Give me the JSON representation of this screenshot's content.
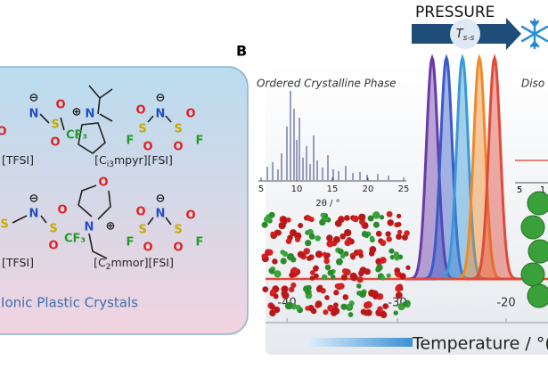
{
  "panel_a": {
    "title": "c Ionic Plastic Crystals",
    "compounds": [
      {
        "label": [
          "[TFSI]"
        ],
        "atoms": [
          "⊖",
          "N",
          "S",
          "O",
          "O",
          "CF₃",
          "O"
        ]
      },
      {
        "label": [
          "[C",
          "i3",
          "mpyr][FSI]"
        ],
        "atoms": [
          "⊕",
          "N",
          "⊖",
          "N",
          "F",
          "S",
          "O",
          "O",
          "S",
          "O",
          "O",
          "F"
        ]
      },
      {
        "label": [
          "[TFSI]"
        ],
        "atoms": [
          "⊖",
          "N",
          "S",
          "S",
          "O",
          "O",
          "CF₃"
        ]
      },
      {
        "label": [
          "[C",
          "2",
          "mmor][FSI]"
        ],
        "atoms": [
          "O",
          "N",
          "⊕",
          "⊖",
          "N",
          "F",
          "S",
          "O",
          "O",
          "S",
          "O",
          "O",
          "F"
        ]
      }
    ]
  },
  "panel_b": {
    "letter": "B",
    "arrow_label": "PRESSURE",
    "transition": [
      "T",
      "s-s"
    ],
    "inset_left": {
      "title": "Ordered Crystalline Phase",
      "ticks": [
        "5",
        "10",
        "15",
        "20",
        "25"
      ],
      "axis_label": "2θ / °"
    },
    "inset_right": {
      "title": "Diso",
      "ticks": [
        "5",
        "1"
      ]
    },
    "x_ticks": [
      "-40",
      "-30",
      "-20"
    ],
    "x_label": "Temperature / °("
  }
}
